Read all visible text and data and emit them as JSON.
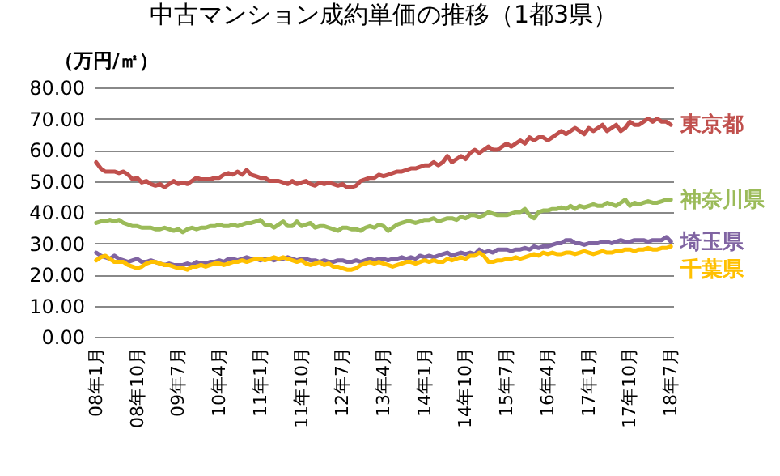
{
  "chart_data": {
    "type": "line",
    "title": "中古マンション成約単価の推移（1都3県）",
    "ylabel": "（万円/㎡）",
    "categories": [
      "08年1月",
      null,
      null,
      null,
      null,
      null,
      null,
      null,
      null,
      "08年10月",
      null,
      null,
      null,
      null,
      null,
      null,
      null,
      null,
      "09年7月",
      null,
      null,
      null,
      null,
      null,
      null,
      null,
      null,
      "10年4月",
      null,
      null,
      null,
      null,
      null,
      null,
      null,
      null,
      "11年1月",
      null,
      null,
      null,
      null,
      null,
      null,
      null,
      null,
      "11年10月",
      null,
      null,
      null,
      null,
      null,
      null,
      null,
      null,
      "12年7月",
      null,
      null,
      null,
      null,
      null,
      null,
      null,
      null,
      "13年4月",
      null,
      null,
      null,
      null,
      null,
      null,
      null,
      null,
      "14年1月",
      null,
      null,
      null,
      null,
      null,
      null,
      null,
      null,
      "14年10月",
      null,
      null,
      null,
      null,
      null,
      null,
      null,
      null,
      "15年7月",
      null,
      null,
      null,
      null,
      null,
      null,
      null,
      null,
      "16年4月",
      null,
      null,
      null,
      null,
      null,
      null,
      null,
      null,
      "17年1月",
      null,
      null,
      null,
      null,
      null,
      null,
      null,
      null,
      "17年10月",
      null,
      null,
      null,
      null,
      null,
      null,
      null,
      null,
      "18年7月"
    ],
    "series": [
      {
        "name": "東京都",
        "color": "#c0504d",
        "values": [
          56,
          54,
          53,
          53,
          53,
          52.5,
          53,
          52,
          50.5,
          51,
          49.5,
          50,
          49,
          48.5,
          49,
          48,
          49,
          50,
          49,
          49.5,
          49,
          50,
          51,
          50.5,
          50.5,
          50.5,
          51,
          51,
          52,
          52.5,
          52,
          53,
          52,
          53.5,
          52,
          51.5,
          51,
          51,
          50,
          50,
          50,
          49.5,
          49,
          50,
          49,
          49.5,
          50,
          49,
          48.5,
          49.5,
          49,
          49.5,
          49,
          48.5,
          49,
          48,
          48,
          48.5,
          50,
          50.5,
          51,
          51,
          52,
          51.5,
          52,
          52.5,
          53,
          53,
          53.5,
          54,
          54,
          54.5,
          55,
          55,
          56,
          55,
          56,
          58,
          56,
          57,
          58,
          57,
          59,
          60,
          59,
          60,
          61,
          60,
          60,
          61,
          62,
          61,
          62,
          63,
          62,
          64,
          63,
          64,
          64,
          63,
          64,
          65,
          66,
          65,
          66,
          67,
          66,
          65,
          67,
          66,
          67,
          68,
          66,
          67,
          68,
          66,
          67,
          69,
          68,
          68,
          69,
          70,
          69,
          70,
          69,
          69,
          68
        ]
      },
      {
        "name": "神奈川県",
        "color": "#9bbb59",
        "values": [
          36.5,
          37,
          37,
          37.5,
          37,
          37.5,
          36.5,
          36,
          35.5,
          35.5,
          35,
          35,
          35,
          34.5,
          34.5,
          35,
          34.5,
          34,
          34.5,
          33.5,
          34.5,
          35,
          34.5,
          35,
          35,
          35.5,
          35.5,
          36,
          35.5,
          35.5,
          36,
          35.5,
          36,
          36.5,
          36.5,
          37,
          37.5,
          36,
          36,
          35,
          36,
          37,
          35.5,
          35.5,
          37,
          35.5,
          36,
          36.5,
          35,
          35.5,
          35.5,
          35,
          34.5,
          34,
          35,
          35,
          34.5,
          34.5,
          34,
          35,
          35.5,
          35,
          36,
          35.5,
          34,
          35,
          36,
          36.5,
          37,
          37,
          36.5,
          37,
          37.5,
          37.5,
          38,
          37,
          37.5,
          38,
          38,
          37.5,
          38.5,
          38,
          39,
          39,
          38.5,
          39,
          40,
          39.5,
          39,
          39,
          39,
          39.5,
          40,
          40,
          41,
          39,
          38,
          40,
          40.5,
          40.5,
          41,
          41,
          41.5,
          41,
          42,
          41,
          42,
          41.5,
          42,
          42.5,
          42,
          42,
          43,
          42.5,
          42,
          43,
          44,
          42,
          43,
          42.5,
          43,
          43.5,
          43,
          43,
          43.5,
          44,
          44
        ]
      },
      {
        "name": "埼玉県",
        "color": "#8064a2",
        "values": [
          27,
          26,
          25.5,
          25,
          26,
          25,
          24.5,
          24,
          24.5,
          25,
          24,
          24,
          24.5,
          24,
          23.5,
          23,
          23.5,
          23,
          23,
          23,
          23.5,
          23,
          24,
          23.5,
          23.5,
          24,
          24,
          24.5,
          24,
          25,
          25,
          24.5,
          25,
          25.5,
          25,
          25,
          24.5,
          25,
          25,
          24.5,
          25,
          25,
          25.5,
          25,
          24.5,
          25,
          25,
          24.5,
          24.5,
          24,
          24.5,
          24,
          24,
          24.5,
          24.5,
          24,
          24,
          24.5,
          24,
          24.5,
          25,
          24.5,
          25,
          25,
          24.5,
          25,
          25,
          25.5,
          25,
          25.5,
          25,
          26,
          25.5,
          26,
          25.5,
          26,
          26.5,
          27,
          26,
          26.5,
          27,
          26.5,
          27,
          26.5,
          28,
          27,
          27.5,
          27,
          28,
          28,
          28,
          27.5,
          28,
          28,
          28.5,
          28,
          29,
          28.5,
          29,
          29,
          29.5,
          30,
          30,
          31,
          31,
          30,
          30,
          29.5,
          30,
          30,
          30,
          30.5,
          30.5,
          30,
          30.5,
          31,
          30.5,
          30.5,
          31,
          31,
          31,
          30.5,
          31,
          31,
          31,
          32,
          30.5
        ]
      },
      {
        "name": "千葉県",
        "color": "#ffc000",
        "values": [
          24.5,
          25.5,
          26,
          25,
          24,
          24,
          24,
          23,
          22.5,
          22,
          22.5,
          23.5,
          24,
          24,
          23.5,
          23,
          23,
          22.5,
          22,
          22,
          21.5,
          22.5,
          22.5,
          23,
          22.5,
          23,
          23.5,
          23.5,
          23,
          23.5,
          24,
          24,
          24.5,
          24,
          24.5,
          25,
          25,
          24.5,
          25,
          25.5,
          25,
          25.5,
          25,
          24.5,
          24,
          24.5,
          23.5,
          23,
          23.5,
          24,
          23,
          23.5,
          22.5,
          22.5,
          22,
          21.5,
          21.5,
          22,
          23,
          23.5,
          24,
          23.5,
          24,
          23.5,
          23,
          22.5,
          23,
          23.5,
          24,
          24,
          23.5,
          24,
          24.5,
          24,
          24.5,
          24,
          24,
          25,
          24.5,
          25,
          25.5,
          25,
          26,
          26,
          27,
          26,
          24,
          24,
          24.5,
          24.5,
          25,
          25,
          25.5,
          25,
          25.5,
          26,
          26.5,
          26,
          27,
          26.5,
          27,
          26.5,
          26.5,
          27,
          27,
          26.5,
          27,
          27.5,
          27,
          26.5,
          27,
          27.5,
          27,
          27,
          27.5,
          27.5,
          28,
          28,
          27.5,
          28,
          28,
          28.5,
          28,
          28,
          28.5,
          28.5,
          29
        ]
      }
    ],
    "ylim": [
      0,
      80
    ],
    "yticks": [
      {
        "value": 0,
        "label": "0.00"
      },
      {
        "value": 10,
        "label": "10.00"
      },
      {
        "value": 20,
        "label": "20.00"
      },
      {
        "value": 30,
        "label": "30.00"
      },
      {
        "value": 40,
        "label": "40.00"
      },
      {
        "value": 50,
        "label": "50.00"
      },
      {
        "value": 60,
        "label": "60.00"
      },
      {
        "value": 70,
        "label": "70.00"
      },
      {
        "value": 80,
        "label": "80.00"
      }
    ],
    "grid": "y",
    "legend": false,
    "marker": "none",
    "line_style": "solid"
  }
}
